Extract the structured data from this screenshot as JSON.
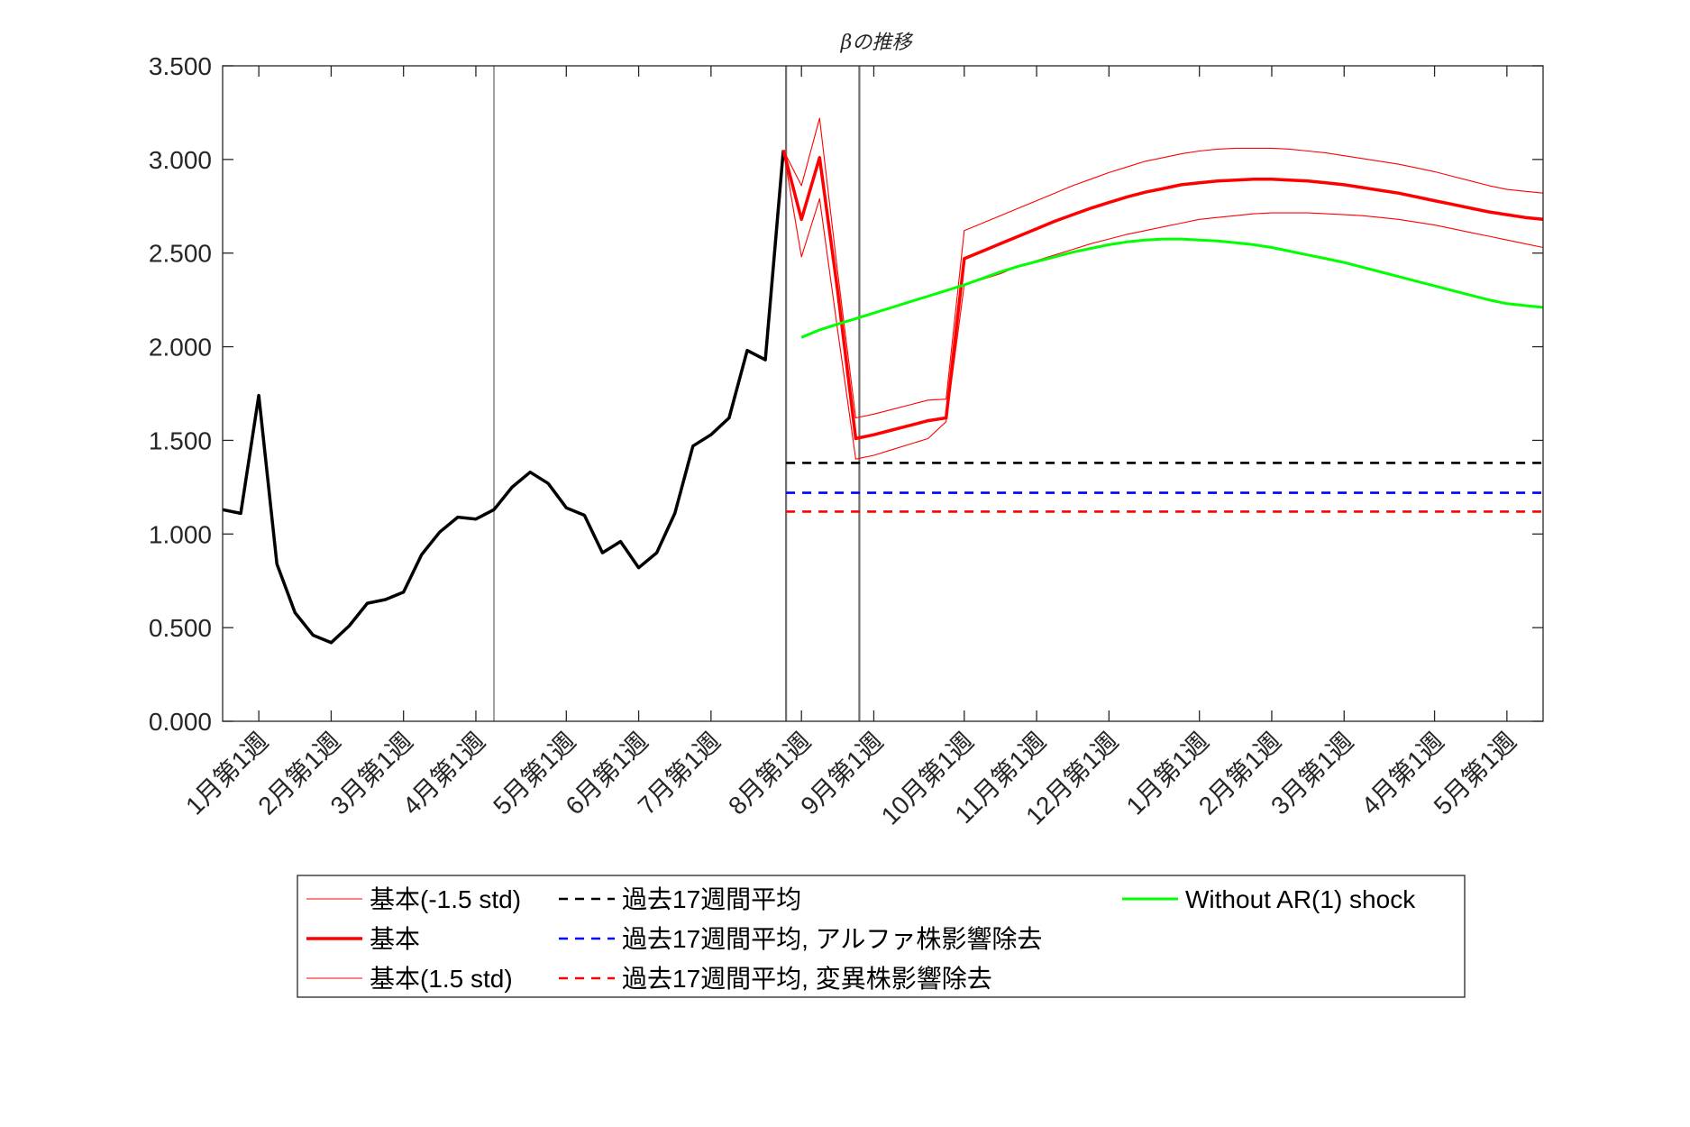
{
  "chart_data": {
    "type": "line",
    "title": "βの推移",
    "ylim": [
      0,
      3.5
    ],
    "yticks": [
      0,
      0.5,
      1.0,
      1.5,
      2.0,
      2.5,
      3.0,
      3.5
    ],
    "ytick_labels": [
      "0.000",
      "0.500",
      "1.000",
      "1.500",
      "2.000",
      "2.500",
      "3.000",
      "3.500"
    ],
    "xlim": [
      0,
      73
    ],
    "xticks": [
      {
        "x": 2,
        "label": "1月第1週"
      },
      {
        "x": 6,
        "label": "2月第1週"
      },
      {
        "x": 10,
        "label": "3月第1週"
      },
      {
        "x": 14,
        "label": "4月第1週"
      },
      {
        "x": 19,
        "label": "5月第1週"
      },
      {
        "x": 23,
        "label": "6月第1週"
      },
      {
        "x": 27,
        "label": "7月第1週"
      },
      {
        "x": 32,
        "label": "8月第1週"
      },
      {
        "x": 36,
        "label": "9月第1週"
      },
      {
        "x": 41,
        "label": "10月第1週"
      },
      {
        "x": 45,
        "label": "11月第1週"
      },
      {
        "x": 49,
        "label": "12月第1週"
      },
      {
        "x": 54,
        "label": "1月第1週"
      },
      {
        "x": 58,
        "label": "2月第1週"
      },
      {
        "x": 62,
        "label": "3月第1週"
      },
      {
        "x": 67,
        "label": "4月第1週"
      },
      {
        "x": 71,
        "label": "5月第1週"
      }
    ],
    "vlines": [
      {
        "x": 15,
        "color": "#6e6e6e",
        "width": 1.3
      },
      {
        "x": 31.15,
        "color": "#6e6e6e",
        "width": 2.2
      },
      {
        "x": 35.2,
        "color": "#6e6e6e",
        "width": 2.2
      }
    ],
    "grid": false,
    "legend_position": "bottom",
    "series": [
      {
        "key": "observed",
        "color": "#000000",
        "width": 3.5,
        "dash": "",
        "x": [
          0,
          1,
          2,
          3,
          4,
          5,
          6,
          7,
          8,
          9,
          10,
          11,
          12,
          13,
          14,
          15,
          16,
          17,
          18,
          19,
          20,
          21,
          22,
          23,
          24,
          25,
          26,
          27,
          28,
          29,
          30,
          31
        ],
        "values": [
          1.13,
          1.11,
          1.74,
          0.84,
          0.58,
          0.46,
          0.42,
          0.51,
          0.63,
          0.65,
          0.69,
          0.89,
          1.01,
          1.09,
          1.08,
          1.13,
          1.25,
          1.33,
          1.27,
          1.14,
          1.1,
          0.9,
          0.96,
          0.82,
          0.9,
          1.11,
          1.47,
          1.53,
          1.62,
          1.98,
          1.93,
          3.05
        ]
      },
      {
        "key": "base_lower",
        "name": "基本(-1.5 std)",
        "color": "#ff0000",
        "width": 1.1,
        "dash": "",
        "x": [
          31,
          32,
          33,
          34,
          35,
          36,
          37,
          38,
          39,
          40,
          41,
          42,
          43,
          44,
          45,
          46,
          47,
          48,
          49,
          50,
          51,
          52,
          53,
          54,
          55,
          56,
          57,
          58,
          59,
          60,
          61,
          62,
          63,
          64,
          65,
          66,
          67,
          68,
          69,
          70,
          71,
          72,
          73
        ],
        "values": [
          3.05,
          2.48,
          2.79,
          2.09,
          1.4,
          1.42,
          1.45,
          1.48,
          1.51,
          1.6,
          2.33,
          2.36,
          2.39,
          2.43,
          2.46,
          2.49,
          2.52,
          2.55,
          2.575,
          2.6,
          2.62,
          2.64,
          2.66,
          2.68,
          2.69,
          2.7,
          2.71,
          2.715,
          2.715,
          2.715,
          2.71,
          2.705,
          2.7,
          2.69,
          2.68,
          2.665,
          2.65,
          2.63,
          2.61,
          2.59,
          2.57,
          2.55,
          2.53
        ]
      },
      {
        "key": "base",
        "name": "基本",
        "color": "#ff0000",
        "width": 3.5,
        "dash": "",
        "x": [
          31,
          32,
          33,
          34,
          35,
          36,
          37,
          38,
          39,
          40,
          41,
          42,
          43,
          44,
          45,
          46,
          47,
          48,
          49,
          50,
          51,
          52,
          53,
          54,
          55,
          56,
          57,
          58,
          59,
          60,
          61,
          62,
          63,
          64,
          65,
          66,
          67,
          68,
          69,
          70,
          71,
          72,
          73
        ],
        "values": [
          3.05,
          2.68,
          3.01,
          2.3,
          1.51,
          1.53,
          1.555,
          1.58,
          1.605,
          1.62,
          2.47,
          2.51,
          2.55,
          2.59,
          2.63,
          2.67,
          2.705,
          2.74,
          2.77,
          2.8,
          2.825,
          2.845,
          2.865,
          2.875,
          2.885,
          2.89,
          2.895,
          2.895,
          2.89,
          2.885,
          2.875,
          2.865,
          2.85,
          2.835,
          2.82,
          2.8,
          2.78,
          2.76,
          2.74,
          2.72,
          2.705,
          2.69,
          2.68
        ]
      },
      {
        "key": "base_upper",
        "name": "基本(1.5 std)",
        "color": "#ff0000",
        "width": 1.1,
        "dash": "",
        "x": [
          31,
          32,
          33,
          34,
          35,
          36,
          37,
          38,
          39,
          40,
          41,
          42,
          43,
          44,
          45,
          46,
          47,
          48,
          49,
          50,
          51,
          52,
          53,
          54,
          55,
          56,
          57,
          58,
          59,
          60,
          61,
          62,
          63,
          64,
          65,
          66,
          67,
          68,
          69,
          70,
          71,
          72,
          73
        ],
        "values": [
          3.05,
          2.86,
          3.22,
          2.4,
          1.62,
          1.64,
          1.665,
          1.69,
          1.715,
          1.72,
          2.62,
          2.66,
          2.7,
          2.74,
          2.78,
          2.82,
          2.86,
          2.895,
          2.93,
          2.96,
          2.99,
          3.01,
          3.03,
          3.045,
          3.055,
          3.06,
          3.06,
          3.06,
          3.055,
          3.045,
          3.035,
          3.02,
          3.005,
          2.99,
          2.975,
          2.955,
          2.935,
          2.91,
          2.885,
          2.86,
          2.84,
          2.83,
          2.82
        ]
      },
      {
        "key": "avg17",
        "name": "過去17週間平均",
        "color": "#000000",
        "width": 2.6,
        "dash": "10,8",
        "x": [
          31.15,
          73
        ],
        "values": [
          1.38,
          1.38
        ]
      },
      {
        "key": "avg17_alpha",
        "name": "過去17週間平均, アルファ株影響除去",
        "color": "#0000ff",
        "width": 2.6,
        "dash": "10,8",
        "x": [
          31.15,
          73
        ],
        "values": [
          1.22,
          1.22
        ]
      },
      {
        "key": "avg17_variant",
        "name": "過去17週間平均, 変異株影響除去",
        "color": "#ff0000",
        "width": 2.6,
        "dash": "10,8",
        "x": [
          31.15,
          73
        ],
        "values": [
          1.12,
          1.12
        ]
      },
      {
        "key": "no_ar1",
        "name": "Without AR(1) shock",
        "color": "#00ff00",
        "width": 3.0,
        "dash": "",
        "x": [
          32,
          33,
          34,
          35,
          36,
          37,
          38,
          39,
          40,
          41,
          42,
          43,
          44,
          45,
          46,
          47,
          48,
          49,
          50,
          51,
          52,
          53,
          54,
          55,
          56,
          57,
          58,
          59,
          60,
          61,
          62,
          63,
          64,
          65,
          66,
          67,
          68,
          69,
          70,
          71,
          72,
          73
        ],
        "values": [
          2.05,
          2.09,
          2.12,
          2.15,
          2.18,
          2.21,
          2.24,
          2.27,
          2.3,
          2.33,
          2.365,
          2.4,
          2.43,
          2.455,
          2.48,
          2.505,
          2.525,
          2.545,
          2.56,
          2.57,
          2.575,
          2.575,
          2.57,
          2.565,
          2.555,
          2.545,
          2.53,
          2.51,
          2.49,
          2.47,
          2.45,
          2.425,
          2.4,
          2.375,
          2.35,
          2.325,
          2.3,
          2.275,
          2.25,
          2.23,
          2.22,
          2.21
        ]
      }
    ],
    "legend": [
      {
        "key": "base_lower",
        "col": 0,
        "row": 0
      },
      {
        "key": "base",
        "col": 0,
        "row": 1
      },
      {
        "key": "base_upper",
        "col": 0,
        "row": 2
      },
      {
        "key": "avg17",
        "col": 1,
        "row": 0
      },
      {
        "key": "avg17_alpha",
        "col": 1,
        "row": 1
      },
      {
        "key": "avg17_variant",
        "col": 1,
        "row": 2
      },
      {
        "key": "no_ar1",
        "col": 2,
        "row": 0
      }
    ]
  }
}
